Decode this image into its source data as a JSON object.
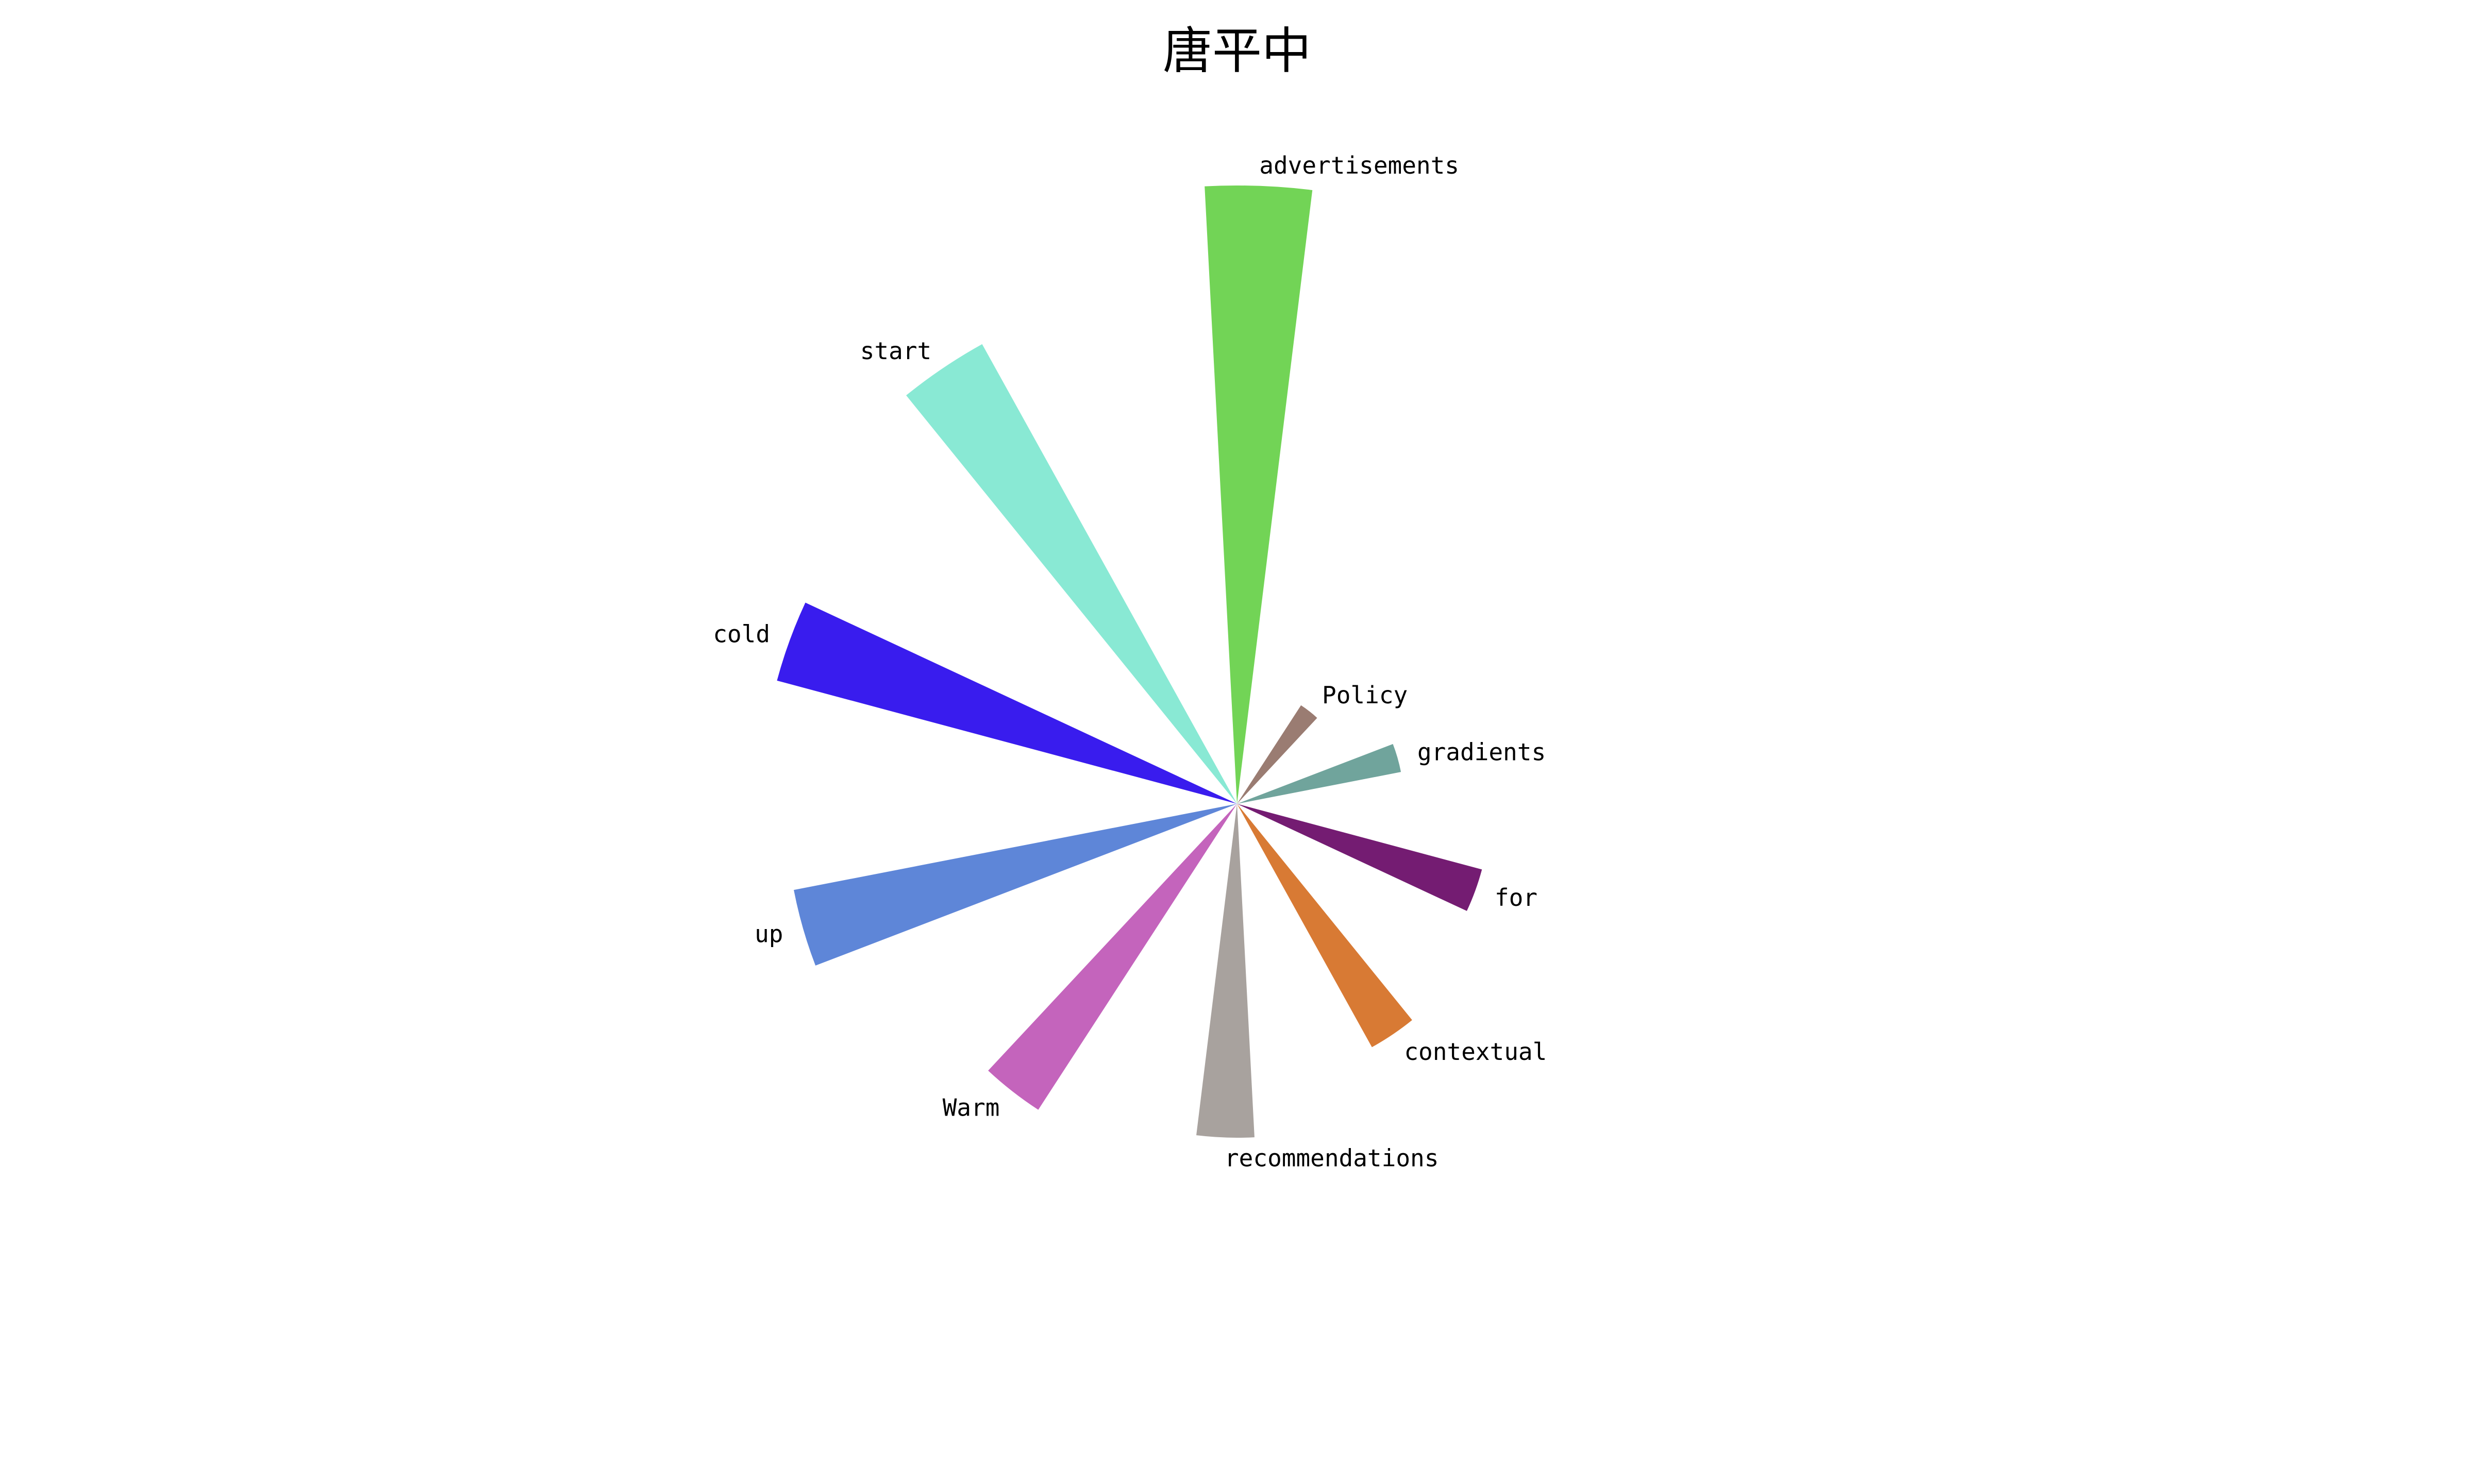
{
  "chart_data": {
    "type": "polar-bar",
    "title": "唐平中",
    "start_angle": "north",
    "direction": "clockwise",
    "radial_range": [
      0,
      100
    ],
    "grid": false,
    "axes_visible": false,
    "legend": "none",
    "categories": [
      "advertisements",
      "Policy",
      "gradients",
      "for",
      "contextual",
      "recommendations",
      "Warm",
      "up",
      "cold",
      "start"
    ],
    "values": [
      100,
      19,
      27,
      41,
      45,
      54,
      59,
      73,
      77,
      85
    ],
    "colors": [
      "#72d456",
      "#9a7c72",
      "#70a49c",
      "#741c72",
      "#d87a34",
      "#a8a29e",
      "#c464bc",
      "#5e86d8",
      "#391cee",
      "#89e9d4"
    ]
  }
}
